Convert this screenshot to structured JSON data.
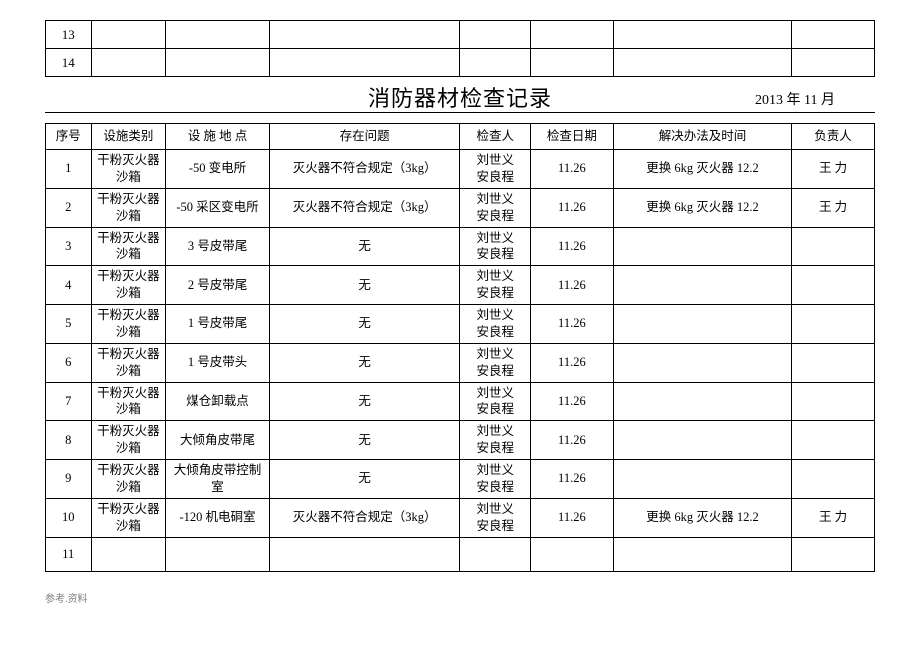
{
  "topRows": [
    "13",
    "14"
  ],
  "title": "消防器材检查记录",
  "dateLabel": "2013 年 11 月",
  "headers": {
    "seq": "序号",
    "type": "设施类别",
    "loc": "设 施 地 点",
    "issue": "存在问题",
    "insp": "检查人",
    "date": "检查日期",
    "sol": "解决办法及时间",
    "resp": "负责人"
  },
  "rows": [
    {
      "seq": "1",
      "type": "干粉灭火器沙箱",
      "loc": "-50 变电所",
      "issue": "灭火器不符合规定（3kg）",
      "insp": "刘世义\n安良程",
      "date": "11.26",
      "sol": "更换 6kg 灭火器 12.2",
      "resp": "王  力"
    },
    {
      "seq": "2",
      "type": "干粉灭火器沙箱",
      "loc": "-50 采区变电所",
      "issue": "灭火器不符合规定（3kg）",
      "insp": "刘世义\n安良程",
      "date": "11.26",
      "sol": "更换 6kg 灭火器 12.2",
      "resp": "王  力"
    },
    {
      "seq": "3",
      "type": "干粉灭火器沙箱",
      "loc": "3 号皮带尾",
      "issue": "无",
      "insp": "刘世义\n安良程",
      "date": "11.26",
      "sol": "",
      "resp": ""
    },
    {
      "seq": "4",
      "type": "干粉灭火器沙箱",
      "loc": "2 号皮带尾",
      "issue": "无",
      "insp": "刘世义\n安良程",
      "date": "11.26",
      "sol": "",
      "resp": ""
    },
    {
      "seq": "5",
      "type": "干粉灭火器沙箱",
      "loc": "1 号皮带尾",
      "issue": "无",
      "insp": "刘世义\n安良程",
      "date": "11.26",
      "sol": "",
      "resp": ""
    },
    {
      "seq": "6",
      "type": "干粉灭火器沙箱",
      "loc": "1 号皮带头",
      "issue": "无",
      "insp": "刘世义\n安良程",
      "date": "11.26",
      "sol": "",
      "resp": ""
    },
    {
      "seq": "7",
      "type": "干粉灭火器沙箱",
      "loc": "煤仓卸载点",
      "issue": "无",
      "insp": "刘世义\n安良程",
      "date": "11.26",
      "sol": "",
      "resp": ""
    },
    {
      "seq": "8",
      "type": "干粉灭火器沙箱",
      "loc": "大倾角皮带尾",
      "issue": "无",
      "insp": "刘世义\n安良程",
      "date": "11.26",
      "sol": "",
      "resp": ""
    },
    {
      "seq": "9",
      "type": "干粉灭火器沙箱",
      "loc": "大倾角皮带控制室",
      "issue": "无",
      "insp": "刘世义\n安良程",
      "date": "11.26",
      "sol": "",
      "resp": ""
    },
    {
      "seq": "10",
      "type": "干粉灭火器沙箱",
      "loc": "-120 机电硐室",
      "issue": "灭火器不符合规定（3kg）",
      "insp": "刘世义\n安良程",
      "date": "11.26",
      "sol": "更换 6kg 灭火器 12.2",
      "resp": "王  力"
    },
    {
      "seq": "11",
      "type": "",
      "loc": "",
      "issue": "",
      "insp": "",
      "date": "",
      "sol": "",
      "resp": ""
    }
  ],
  "footer": "参考.资料",
  "colors": {
    "border": "#000000",
    "bg": "#ffffff",
    "footer": "#808080"
  }
}
